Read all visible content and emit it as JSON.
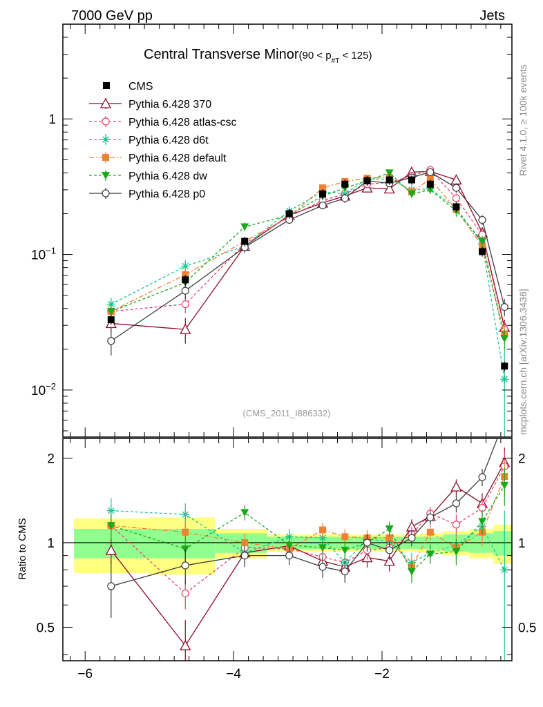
{
  "header": {
    "left": "7000 GeV pp",
    "right": "Jets"
  },
  "side": {
    "rivet": "Rivet 4.1.0, ≥ 100k events",
    "url": "mcplots.cern.ch [arXiv:1306.3436]"
  },
  "chart_data": {
    "type": "line",
    "title_main": "Central Transverse Minor",
    "title_range": "(90 < p",
    "title_sub": "#T",
    "title_end": " < 125)",
    "watermark": "(CMS_2011_I886332)",
    "xlim": [
      -6.3,
      -0.25
    ],
    "upper": {
      "scale": "log",
      "ylim": [
        0.0045,
        5
      ],
      "yticks": [
        "1",
        "10",
        "10"
      ],
      "ytick_exp": [
        "",
        "−1",
        "−2"
      ]
    },
    "ratio": {
      "ylabel": "Ratio to CMS",
      "ylim": [
        0.38,
        2.35
      ],
      "yticks": [
        "0.5",
        "1",
        "2"
      ]
    },
    "xticks": [
      "−6",
      "−4",
      "−2"
    ],
    "x": [
      -5.65,
      -4.65,
      -3.85,
      -3.25,
      -2.8,
      -2.5,
      -2.2,
      -1.9,
      -1.6,
      -1.35,
      -1.0,
      -0.65,
      -0.35
    ],
    "cms": {
      "name": "CMS",
      "values": [
        0.033,
        0.065,
        0.125,
        0.2,
        0.28,
        0.33,
        0.35,
        0.355,
        0.355,
        0.33,
        0.225,
        0.105,
        0.015
      ],
      "band_inner": [
        0.12,
        0.12,
        0.08,
        0.05,
        0.05,
        0.05,
        0.05,
        0.05,
        0.05,
        0.05,
        0.07,
        0.08,
        0.1
      ],
      "band_outer": [
        0.22,
        0.23,
        0.12,
        0.07,
        0.07,
        0.07,
        0.07,
        0.07,
        0.07,
        0.08,
        0.1,
        0.12,
        0.16
      ]
    },
    "series": [
      {
        "name": "Pythia 6.428 370",
        "color": "#8b0b2a",
        "dash": "",
        "marker": "triangle-open",
        "values": [
          0.031,
          0.028,
          0.115,
          0.195,
          0.24,
          0.27,
          0.31,
          0.305,
          0.405,
          0.41,
          0.355,
          0.145,
          0.029
        ],
        "errors": [
          0.004,
          0.006,
          0.01,
          0.012,
          0.015,
          0.02,
          0.02,
          0.02,
          0.02,
          0.02,
          0.025,
          0.012,
          0.004
        ]
      },
      {
        "name": "Pythia 6.428 atlas-csc",
        "color": "#e8406a",
        "dash": "4,3",
        "marker": "circle-open",
        "values": [
          0.038,
          0.043,
          0.12,
          0.19,
          0.25,
          0.28,
          0.33,
          0.34,
          0.38,
          0.42,
          0.26,
          0.14,
          0.028
        ],
        "errors": [
          0.005,
          0.006,
          0.01,
          0.012,
          0.015,
          0.02,
          0.02,
          0.02,
          0.02,
          0.02,
          0.02,
          0.012,
          0.004
        ]
      },
      {
        "name": "Pythia 6.428 d6t",
        "color": "#1ec496",
        "dash": "4,3",
        "marker": "star",
        "values": [
          0.043,
          0.082,
          0.115,
          0.21,
          0.29,
          0.28,
          0.36,
          0.36,
          0.3,
          0.305,
          0.22,
          0.12,
          0.012
        ],
        "errors": [
          0.005,
          0.009,
          0.01,
          0.014,
          0.018,
          0.02,
          0.02,
          0.02,
          0.02,
          0.02,
          0.02,
          0.012,
          0.009
        ]
      },
      {
        "name": "Pythia 6.428 default",
        "color": "#f28030",
        "dash": "7,3,2,3",
        "marker": "square",
        "values": [
          0.038,
          0.071,
          0.125,
          0.19,
          0.31,
          0.345,
          0.365,
          0.37,
          0.29,
          0.36,
          0.215,
          0.115,
          0.026
        ],
        "errors": [
          0.005,
          0.008,
          0.01,
          0.012,
          0.018,
          0.02,
          0.02,
          0.02,
          0.02,
          0.02,
          0.02,
          0.012,
          0.004
        ]
      },
      {
        "name": "Pythia 6.428 dw",
        "color": "#1ba81b",
        "dash": "4,3",
        "marker": "triangle-down",
        "values": [
          0.038,
          0.062,
          0.16,
          0.195,
          0.27,
          0.31,
          0.35,
          0.4,
          0.28,
          0.3,
          0.21,
          0.125,
          0.024
        ],
        "errors": [
          0.005,
          0.008,
          0.012,
          0.013,
          0.018,
          0.02,
          0.02,
          0.02,
          0.02,
          0.02,
          0.02,
          0.012,
          0.004
        ]
      },
      {
        "name": "Pythia 6.428 p0",
        "color": "#3a3a3a",
        "dash": "",
        "marker": "circle-open",
        "values": [
          0.023,
          0.054,
          0.113,
          0.18,
          0.23,
          0.26,
          0.35,
          0.335,
          0.37,
          0.405,
          0.31,
          0.18,
          0.041
        ],
        "errors": [
          0.005,
          0.007,
          0.01,
          0.012,
          0.015,
          0.02,
          0.02,
          0.02,
          0.02,
          0.02,
          0.025,
          0.015,
          0.006
        ]
      }
    ],
    "ratio_values": [
      [
        0.94,
        0.43,
        0.92,
        0.975,
        0.86,
        0.82,
        0.885,
        0.86,
        1.14,
        1.24,
        1.58,
        1.38,
        1.93
      ],
      [
        1.15,
        0.66,
        0.96,
        0.95,
        0.89,
        0.85,
        0.94,
        0.96,
        1.07,
        1.27,
        1.16,
        1.33,
        1.87
      ],
      [
        1.3,
        1.26,
        0.92,
        1.05,
        1.04,
        0.85,
        1.03,
        1.01,
        0.85,
        0.92,
        0.98,
        1.14,
        0.8
      ],
      [
        1.15,
        1.09,
        1.0,
        0.95,
        1.11,
        1.05,
        1.04,
        1.04,
        0.82,
        1.09,
        0.96,
        1.09,
        1.72
      ],
      [
        1.15,
        0.95,
        1.28,
        0.98,
        0.96,
        0.94,
        1.0,
        1.12,
        0.79,
        0.91,
        0.93,
        1.19,
        1.6
      ],
      [
        0.7,
        0.83,
        0.9,
        0.9,
        0.82,
        0.79,
        1.0,
        0.94,
        1.04,
        1.23,
        1.38,
        1.71,
        2.73
      ]
    ],
    "ratio_errors": [
      [
        0.1,
        0.1,
        0.08,
        0.07,
        0.07,
        0.07,
        0.07,
        0.07,
        0.07,
        0.07,
        0.1,
        0.12,
        0.25
      ],
      [
        0.12,
        0.08,
        0.08,
        0.07,
        0.07,
        0.07,
        0.07,
        0.07,
        0.07,
        0.07,
        0.1,
        0.12,
        0.25
      ],
      [
        0.14,
        0.12,
        0.08,
        0.07,
        0.07,
        0.07,
        0.07,
        0.07,
        0.07,
        0.07,
        0.1,
        0.12,
        0.5
      ],
      [
        0.12,
        0.1,
        0.08,
        0.07,
        0.07,
        0.07,
        0.07,
        0.07,
        0.07,
        0.07,
        0.1,
        0.12,
        0.25
      ],
      [
        0.12,
        0.1,
        0.08,
        0.07,
        0.07,
        0.07,
        0.07,
        0.07,
        0.07,
        0.07,
        0.1,
        0.12,
        0.25
      ],
      [
        0.16,
        0.12,
        0.08,
        0.07,
        0.07,
        0.07,
        0.07,
        0.07,
        0.07,
        0.07,
        0.1,
        0.12,
        0.3
      ]
    ]
  }
}
